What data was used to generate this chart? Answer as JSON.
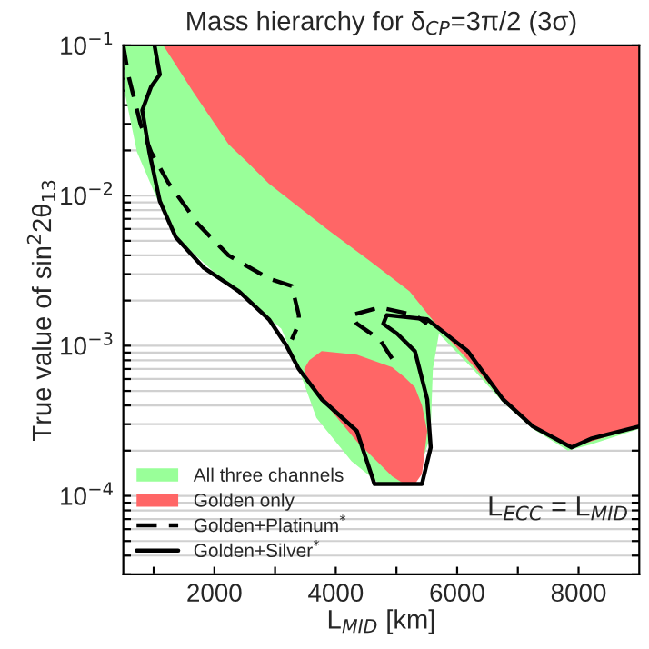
{
  "chart_data": {
    "type": "area",
    "title": "Mass hierarchy for δ$_{CP}$=3π/2 (3σ)",
    "xlabel": "L$_{MID}$ [km]",
    "ylabel": "True value of sin$^{2}$2θ$_{13}$",
    "annotations": [
      "L$_{ECC}$ = L$_{MID}$"
    ],
    "log": "y",
    "grid": "y",
    "legend": "bottom left",
    "xlim": [
      500,
      9000
    ],
    "ylim": [
      3e-05,
      0.1
    ],
    "xticks": [
      {
        "value": 1000,
        "label": null
      },
      2000,
      {
        "value": 3000,
        "label": null
      },
      4000,
      {
        "value": 5000,
        "label": null
      },
      6000,
      {
        "value": 7000,
        "label": null
      },
      8000
    ],
    "yticks": [
      {
        "value": 3e-05,
        "label": null
      },
      {
        "value": 4e-05,
        "label": null
      },
      {
        "value": 5e-05,
        "label": null
      },
      {
        "value": 6e-05,
        "label": null
      },
      {
        "value": 7e-05,
        "label": null
      },
      {
        "value": 8e-05,
        "label": null
      },
      {
        "value": 9e-05,
        "label": null
      },
      {
        "value": 0.0001,
        "label": "10$^{−4}$"
      },
      {
        "value": 0.0002,
        "label": null
      },
      {
        "value": 0.0003,
        "label": null
      },
      {
        "value": 0.0004,
        "label": null
      },
      {
        "value": 0.0005,
        "label": null
      },
      {
        "value": 0.0006,
        "label": null
      },
      {
        "value": 0.0007,
        "label": null
      },
      {
        "value": 0.0008,
        "label": null
      },
      {
        "value": 0.0009,
        "label": null
      },
      {
        "value": 0.001,
        "label": "10$^{−3}$"
      },
      {
        "value": 0.002,
        "label": null
      },
      {
        "value": 0.003,
        "label": null
      },
      {
        "value": 0.004,
        "label": null
      },
      {
        "value": 0.005,
        "label": null
      },
      {
        "value": 0.006,
        "label": null
      },
      {
        "value": 0.007,
        "label": null
      },
      {
        "value": 0.008,
        "label": null
      },
      {
        "value": 0.009,
        "label": null
      },
      {
        "value": 0.01,
        "label": "10$^{−2}$"
      },
      {
        "value": 0.02,
        "label": null
      },
      {
        "value": 0.03,
        "label": null
      },
      {
        "value": 0.04,
        "label": null
      },
      {
        "value": 0.05,
        "label": null
      },
      {
        "value": 0.06,
        "label": null
      },
      {
        "value": 0.07,
        "label": null
      },
      {
        "value": 0.08,
        "label": null
      },
      {
        "value": 0.09,
        "label": null
      },
      {
        "value": 0.1,
        "label": "10$^{−1}$"
      }
    ],
    "series": [
      {
        "name": "All three channels",
        "color": "#99ff99",
        "x": [
          500,
          522,
          725,
          1072,
          1449,
          2029,
          2609,
          3101,
          3391,
          3681,
          4261,
          4725,
          5304,
          5560,
          5600,
          5700,
          6232,
          6754,
          7246,
          7826,
          8203,
          9000,
          9000
        ],
        "values": [
          0.1,
          0.049,
          0.0195,
          0.0092,
          0.0049,
          0.003,
          0.0019,
          0.0013,
          0.0007,
          0.00033,
          0.00017,
          0.00012,
          0.00012,
          0.00025,
          0.0007,
          0.0012,
          0.00072,
          0.00042,
          0.00028,
          0.0002,
          0.00022,
          0.00028,
          0.1
        ]
      },
      {
        "name": "Golden only",
        "color": "#ff6666",
        "x": [
          1159,
          1652,
          2232,
          2522,
          2899,
          3826,
          4551,
          5217,
          5710,
          6232,
          6754,
          7246,
          7884,
          8203,
          9000,
          9000
        ],
        "values": [
          0.1,
          0.049,
          0.022,
          0.017,
          0.012,
          0.0061,
          0.0037,
          0.0023,
          0.0013,
          0.00076,
          0.00044,
          0.00029,
          0.00021,
          0.00023,
          0.00029,
          0.1
        ]
      },
      {
        "color": "#ff6666",
        "x": [
          3478,
          3565,
          3768,
          4348,
          4928,
          5130,
          5304,
          5420,
          5507,
          5420,
          5304,
          5130,
          4928,
          4348,
          3768,
          3565
        ],
        "values": [
          0.0007,
          0.0008,
          0.00092,
          0.00087,
          0.00072,
          0.00062,
          0.00053,
          0.0004,
          0.00027,
          0.00014,
          0.00012,
          0.00012,
          0.000135,
          0.00023,
          0.00044,
          0.00054
        ]
      },
      {
        "name": "Golden+Platinum$^{*}$",
        "type": "line",
        "color": "#000000",
        "line_style": "dashed",
        "x": [
          500,
          580,
          783,
          957,
          1246,
          1739,
          2232,
          2899,
          3275,
          3391,
          3391,
          3275,
          3300,
          4928,
          4725,
          4348,
          4261,
          4725,
          5304,
          5507
        ],
        "values": [
          0.1,
          0.064,
          0.03,
          0.0195,
          0.0121,
          0.0064,
          0.004,
          0.0028,
          0.0025,
          0.0016,
          0.0014,
          0.0011,
          null,
          0.00082,
          0.0011,
          0.0014,
          0.0016,
          0.0018,
          0.0016,
          0.0014
        ]
      },
      {
        "name": "Golden+Silver$^{*}$",
        "type": "line",
        "color": "#000000",
        "line_style": "solid",
        "x": [
          1014,
          1101,
          957,
          812,
          928,
          1101,
          1362,
          1826,
          2406,
          2899,
          3188,
          3391,
          3768,
          4348,
          4638,
          4928,
          5420,
          5565,
          5507,
          5304,
          5014,
          4783,
          4841,
          5507,
          6174,
          6754,
          7246,
          7884,
          8203,
          9000
        ],
        "values": [
          0.1,
          0.064,
          0.053,
          0.037,
          0.0195,
          0.0092,
          0.0053,
          0.0033,
          0.0023,
          0.0015,
          0.001,
          0.0007,
          0.00044,
          0.00027,
          0.00012,
          0.00012,
          0.00012,
          0.00021,
          0.00044,
          0.00092,
          0.0012,
          0.0014,
          0.0016,
          0.0015,
          0.00092,
          0.00044,
          0.00029,
          0.00021,
          0.00024,
          0.00029
        ]
      }
    ]
  }
}
